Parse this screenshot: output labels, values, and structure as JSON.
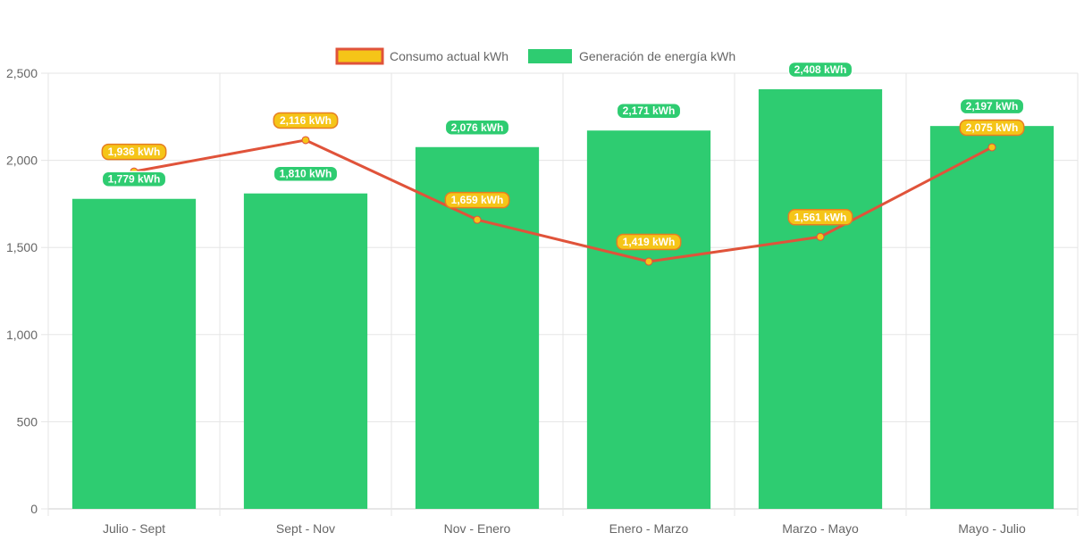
{
  "chart_data": {
    "type": "bar",
    "categories": [
      "Julio - Sept",
      "Sept - Nov",
      "Nov - Enero",
      "Enero - Marzo",
      "Marzo - Mayo",
      "Mayo - Julio"
    ],
    "series": [
      {
        "name": "Consumo actual kWh",
        "kind": "line",
        "values": [
          1936,
          2116,
          1659,
          1419,
          1561,
          2075
        ],
        "labels": [
          "1,936 kWh",
          "2,116 kWh",
          "1,659 kWh",
          "1,419 kWh",
          "1,561 kWh",
          "2,075 kWh"
        ],
        "line_color": "#e0533a",
        "point_color": "#f5c518"
      },
      {
        "name": "Generación de energía kWh",
        "kind": "bar",
        "values": [
          1779,
          1810,
          2076,
          2171,
          2408,
          2197
        ],
        "labels": [
          "1,779 kWh",
          "1,810 kWh",
          "2,076 kWh",
          "2,171 kWh",
          "2,408 kWh",
          "2,197 kWh"
        ],
        "color": "#2ecc71"
      }
    ],
    "ylim": [
      0,
      2500
    ],
    "yticks": [
      0,
      500,
      1000,
      1500,
      2000,
      2500
    ],
    "ytick_labels": [
      "0",
      "500",
      "1,000",
      "1,500",
      "2,000",
      "2,500"
    ],
    "legend_position": "top",
    "grid": true
  }
}
